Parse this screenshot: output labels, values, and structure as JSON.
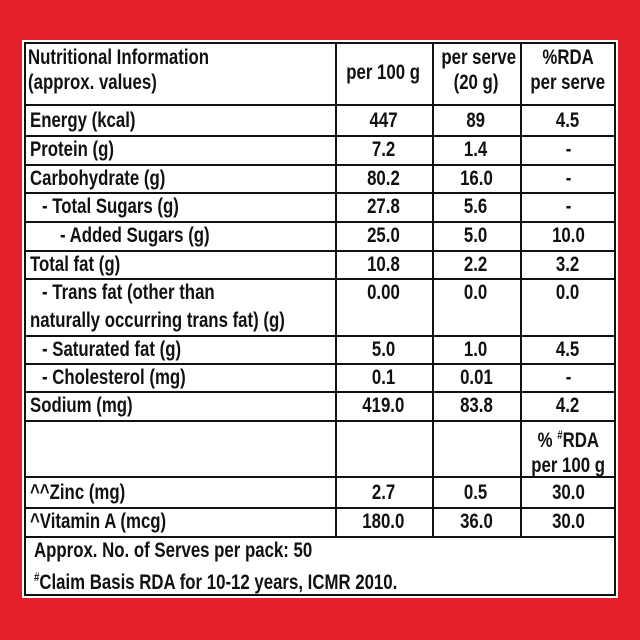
{
  "header": [
    [
      "Nutritional Information",
      "(approx. values)"
    ],
    [
      "per 100 g"
    ],
    [
      "per serve",
      "(20 g)"
    ],
    [
      "%RDA",
      "per serve"
    ]
  ],
  "rows": [
    {
      "label": [
        "Energy (kcal)"
      ],
      "values": [
        "447",
        "89",
        "4.5"
      ]
    },
    {
      "label": [
        "Protein (g)"
      ],
      "values": [
        "7.2",
        "1.4",
        "-"
      ]
    },
    {
      "label": [
        "Carbohydrate (g)"
      ],
      "values": [
        "80.2",
        "16.0",
        "-"
      ]
    },
    {
      "label": [
        "- Total Sugars (g)"
      ],
      "values": [
        "27.8",
        "5.6",
        "-"
      ]
    },
    {
      "label": [
        "- Added Sugars (g)"
      ],
      "values": [
        "25.0",
        "5.0",
        "10.0"
      ]
    },
    {
      "label": [
        "Total fat (g)"
      ],
      "values": [
        "10.8",
        "2.2",
        "3.2"
      ]
    },
    {
      "label": [
        "- Trans fat (other than",
        "naturally occurring trans fat) (g)"
      ],
      "values": [
        "0.00",
        "0.0",
        "0.0"
      ]
    },
    {
      "label": [
        "- Saturated fat (g)"
      ],
      "values": [
        "5.0",
        "1.0",
        "4.5"
      ]
    },
    {
      "label": [
        "- Cholesterol (mg)"
      ],
      "values": [
        "0.1",
        "0.01",
        "-"
      ]
    },
    {
      "label": [
        "Sodium (mg)"
      ],
      "values": [
        "419.0",
        "83.8",
        "4.2"
      ]
    }
  ],
  "rda_header": {
    "pre": "% ",
    "sup": "#",
    "post": "RDA",
    "line2": "per 100 g"
  },
  "rows2": [
    {
      "label": [
        "^^Zinc (mg)"
      ],
      "values": [
        "2.7",
        "0.5",
        "30.0"
      ]
    },
    {
      "label": [
        "^Vitamin A (mcg)"
      ],
      "values": [
        "180.0",
        "36.0",
        "30.0"
      ]
    }
  ],
  "footer": {
    "serves": "Approx. No. of Serves per pack: 50",
    "note_sup": "#",
    "note": "Claim Basis RDA for 10-12 years, ICMR 2010."
  }
}
